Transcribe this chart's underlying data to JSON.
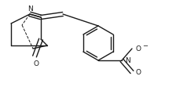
{
  "bg_color": "#ffffff",
  "line_color": "#1a1a1a",
  "lw": 1.0,
  "figsize": [
    2.24,
    1.11
  ],
  "dpi": 100,
  "xlim": [
    0,
    224
  ],
  "ylim": [
    0,
    111
  ]
}
